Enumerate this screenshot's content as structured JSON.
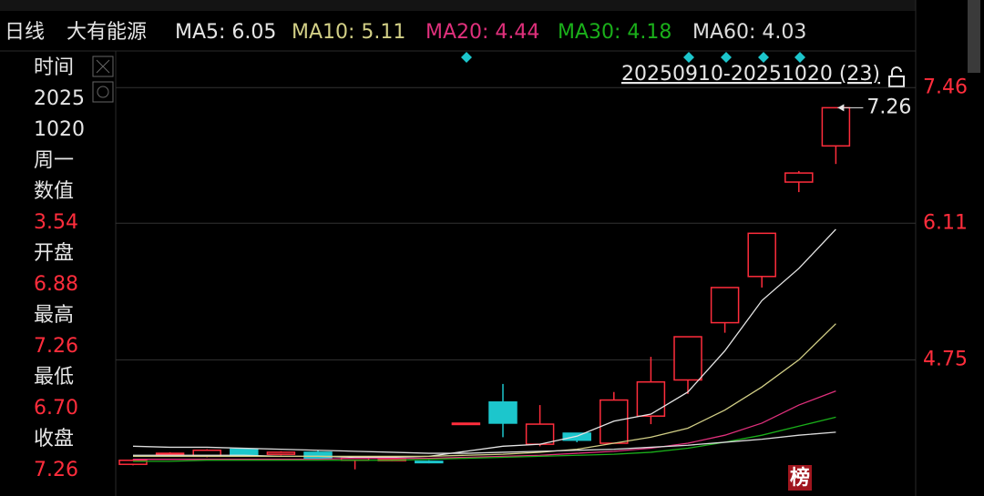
{
  "chart_data": {
    "type": "candlestick",
    "title": "日线",
    "subtitle": "大有能源",
    "range_label": "20250910-20251020 (23)",
    "last_price": 7.26,
    "badge": "榜",
    "open": [
      3.71,
      3.81,
      3.79,
      3.86,
      3.81,
      3.83,
      3.75,
      3.75,
      3.74,
      4.11,
      4.33,
      3.91,
      4.02,
      3.92,
      4.19,
      4.55,
      5.12,
      5.58,
      6.52,
      6.88
    ],
    "high": [
      3.76,
      3.83,
      3.86,
      3.87,
      3.84,
      3.85,
      3.78,
      3.77,
      3.75,
      4.12,
      4.51,
      4.3,
      4.02,
      4.43,
      4.78,
      4.98,
      5.47,
      6.01,
      6.63,
      7.26
    ],
    "low": [
      3.7,
      3.8,
      3.78,
      3.79,
      3.8,
      3.76,
      3.66,
      3.74,
      3.72,
      4.11,
      3.98,
      3.89,
      3.93,
      3.92,
      4.11,
      4.41,
      5.02,
      5.47,
      6.42,
      6.7
    ],
    "close": [
      3.75,
      3.82,
      3.85,
      3.8,
      3.83,
      3.77,
      3.77,
      3.76,
      3.73,
      4.12,
      4.12,
      4.11,
      3.95,
      4.35,
      4.53,
      4.98,
      5.47,
      6.01,
      6.61,
      7.26
    ],
    "up_color": "#ff2d3c",
    "down_color": "#1cc6cc",
    "ylim": [
      3.44,
      7.97
    ],
    "yticks": [
      4.75,
      6.11,
      7.46
    ],
    "grid": true,
    "series": [
      {
        "name": "MA5: 6.05",
        "color": "#e6e6e6",
        "values": [
          3.8,
          3.8,
          3.8,
          3.8,
          3.79,
          3.79,
          3.78,
          3.78,
          3.79,
          3.84,
          3.89,
          3.91,
          3.99,
          4.14,
          4.21,
          4.43,
          4.84,
          5.34,
          5.66,
          6.05
        ]
      },
      {
        "name": "MA10: 5.11",
        "color": "#d2cf86",
        "values": [
          3.79,
          3.79,
          3.79,
          3.79,
          3.79,
          3.79,
          3.79,
          3.79,
          3.79,
          3.8,
          3.81,
          3.83,
          3.86,
          3.92,
          3.98,
          4.07,
          4.25,
          4.48,
          4.75,
          5.11
        ]
      },
      {
        "name": "MA20: 4.44",
        "color": "#e0307c",
        "values": [
          3.76,
          3.76,
          3.76,
          3.76,
          3.76,
          3.76,
          3.77,
          3.77,
          3.77,
          3.78,
          3.79,
          3.8,
          3.82,
          3.84,
          3.87,
          3.92,
          4.0,
          4.12,
          4.3,
          4.44
        ]
      },
      {
        "name": "MA30: 4.18",
        "color": "#1aaf1a",
        "values": [
          3.74,
          3.74,
          3.75,
          3.75,
          3.75,
          3.75,
          3.75,
          3.75,
          3.76,
          3.77,
          3.78,
          3.79,
          3.8,
          3.81,
          3.83,
          3.87,
          3.93,
          4.0,
          4.09,
          4.18
        ]
      },
      {
        "name": "MA60: 4.03",
        "color": "#dcdcdc",
        "values": [
          3.89,
          3.88,
          3.88,
          3.87,
          3.86,
          3.85,
          3.84,
          3.83,
          3.82,
          3.82,
          3.83,
          3.84,
          3.85,
          3.86,
          3.88,
          3.9,
          3.93,
          3.96,
          4.0,
          4.03
        ]
      }
    ]
  },
  "info_panel": {
    "items": [
      {
        "text": "时间",
        "kind": "label"
      },
      {
        "text": "2025",
        "kind": "label"
      },
      {
        "text": "1020",
        "kind": "label"
      },
      {
        "text": "周一",
        "kind": "label"
      },
      {
        "text": "数值",
        "kind": "label"
      },
      {
        "text": "3.54",
        "kind": "value"
      },
      {
        "text": "开盘",
        "kind": "label"
      },
      {
        "text": "6.88",
        "kind": "value"
      },
      {
        "text": "最高",
        "kind": "label"
      },
      {
        "text": "7.26",
        "kind": "value"
      },
      {
        "text": "最低",
        "kind": "label"
      },
      {
        "text": "6.70",
        "kind": "value"
      },
      {
        "text": "收盘",
        "kind": "label"
      },
      {
        "text": "7.26",
        "kind": "value"
      }
    ]
  }
}
